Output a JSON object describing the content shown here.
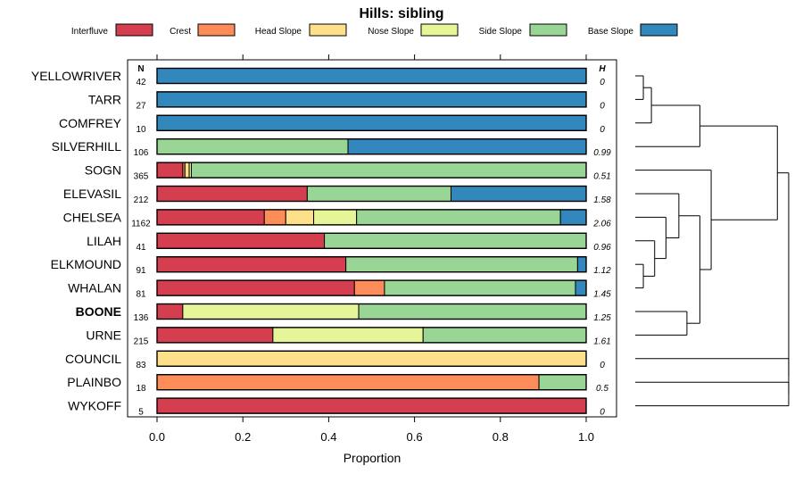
{
  "chart_data": {
    "type": "bar",
    "subtype": "stacked-horizontal-proportion",
    "title": "Hills: sibling",
    "xlabel": "Proportion",
    "xlim": [
      0,
      1
    ],
    "x_ticks": [
      "0.0",
      "0.2",
      "0.4",
      "0.6",
      "0.8",
      "1.0"
    ],
    "x_tick_values": [
      0,
      0.2,
      0.4,
      0.6,
      0.8,
      1.0
    ],
    "n_header": "N",
    "h_header": "H",
    "legend": [
      {
        "name": "Interfluve",
        "color": "#d53e4f"
      },
      {
        "name": "Crest",
        "color": "#fc8d59"
      },
      {
        "name": "Head Slope",
        "color": "#fee08b"
      },
      {
        "name": "Nose Slope",
        "color": "#e6f598"
      },
      {
        "name": "Side Slope",
        "color": "#99d594"
      },
      {
        "name": "Base Slope",
        "color": "#3288bd"
      }
    ],
    "categories": [
      "YELLOWRIVER",
      "TARR",
      "COMFREY",
      "SILVERHILL",
      "SOGN",
      "ELEVASIL",
      "CHELSEA",
      "LILAH",
      "ELKMOUND",
      "WHALAN",
      "BOONE",
      "URNE",
      "COUNCIL",
      "PLAINBO",
      "WYKOFF"
    ],
    "bold_category": "BOONE",
    "n": [
      "42",
      "27",
      "10",
      "106",
      "365",
      "212",
      "1162",
      "41",
      "91",
      "81",
      "136",
      "215",
      "83",
      "18",
      "5"
    ],
    "h": [
      "0",
      "0",
      "0",
      "0.99",
      "0.51",
      "1.58",
      "2.06",
      "0.96",
      "1.12",
      "1.45",
      "1.25",
      "1.61",
      "0",
      "0.5",
      "0"
    ],
    "series": [
      {
        "name": "Interfluve",
        "values": [
          0,
          0,
          0,
          0,
          0.06,
          0.35,
          0.25,
          0.39,
          0.44,
          0.46,
          0.06,
          0.27,
          0,
          0,
          1.0
        ]
      },
      {
        "name": "Crest",
        "values": [
          0,
          0,
          0,
          0,
          0.005,
          0,
          0.05,
          0,
          0,
          0.07,
          0,
          0,
          0,
          0.89,
          0
        ]
      },
      {
        "name": "Head Slope",
        "values": [
          0,
          0,
          0,
          0,
          0.01,
          0,
          0.065,
          0,
          0,
          0,
          0,
          0,
          1.0,
          0,
          0
        ]
      },
      {
        "name": "Nose Slope",
        "values": [
          0,
          0,
          0,
          0,
          0.005,
          0,
          0.1,
          0,
          0,
          0,
          0.41,
          0.35,
          0,
          0,
          0
        ]
      },
      {
        "name": "Side Slope",
        "values": [
          0,
          0,
          0,
          0.445,
          0.92,
          0.335,
          0.475,
          0.61,
          0.54,
          0.445,
          0.53,
          0.38,
          0,
          0.11,
          0
        ]
      },
      {
        "name": "Base Slope",
        "values": [
          1.0,
          1.0,
          1.0,
          0.555,
          0,
          0.315,
          0.06,
          0,
          0.02,
          0.025,
          0,
          0,
          0,
          0,
          0
        ]
      }
    ],
    "dendrogram": {
      "order": [
        "YELLOWRIVER",
        "TARR",
        "COMFREY",
        "SILVERHILL",
        "SOGN",
        "ELEVASIL",
        "CHELSEA",
        "LILAH",
        "ELKMOUND",
        "WHALAN",
        "BOONE",
        "URNE",
        "COUNCIL",
        "PLAINBO",
        "WYKOFF"
      ],
      "merges": [
        {
          "left": 0,
          "right": 1,
          "height": 0.05
        },
        {
          "left": 2,
          "right": -1,
          "height": 0.1
        },
        {
          "left": 3,
          "right": -2,
          "height": 0.4
        },
        {
          "left": 8,
          "right": 9,
          "height": 0.05
        },
        {
          "left": 7,
          "right": -4,
          "height": 0.12
        },
        {
          "left": 6,
          "right": -5,
          "height": 0.19
        },
        {
          "left": 5,
          "right": -6,
          "height": 0.27
        },
        {
          "left": 10,
          "right": 11,
          "height": 0.32
        },
        {
          "left": -7,
          "right": -8,
          "height": 0.4
        },
        {
          "left": 4,
          "right": -9,
          "height": 0.47
        },
        {
          "left": -3,
          "right": -10,
          "height": 0.88
        },
        {
          "left": 13,
          "right": 14,
          "height": 0.95
        },
        {
          "left": 12,
          "right": -12,
          "height": 0.95
        },
        {
          "left": -11,
          "right": -13,
          "height": 0.95
        }
      ],
      "max_height": 1.0
    }
  }
}
